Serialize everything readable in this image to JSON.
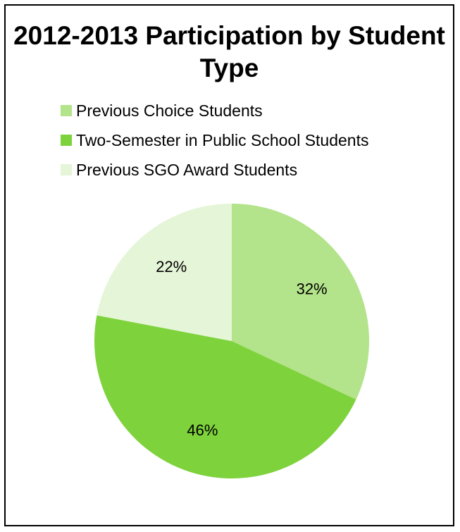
{
  "chart_data": {
    "type": "pie",
    "title": "2012-2013 Participation by Student Type",
    "legend_position": "top",
    "categories": [
      "Previous Choice Students",
      "Two-Semester in Public School Students",
      "Previous SGO Award Students"
    ],
    "values": [
      32,
      46,
      22
    ],
    "value_labels": [
      "32%",
      "46%",
      "22%"
    ],
    "colors": [
      "#b3e38a",
      "#7ed23c",
      "#e5f5d8"
    ]
  }
}
